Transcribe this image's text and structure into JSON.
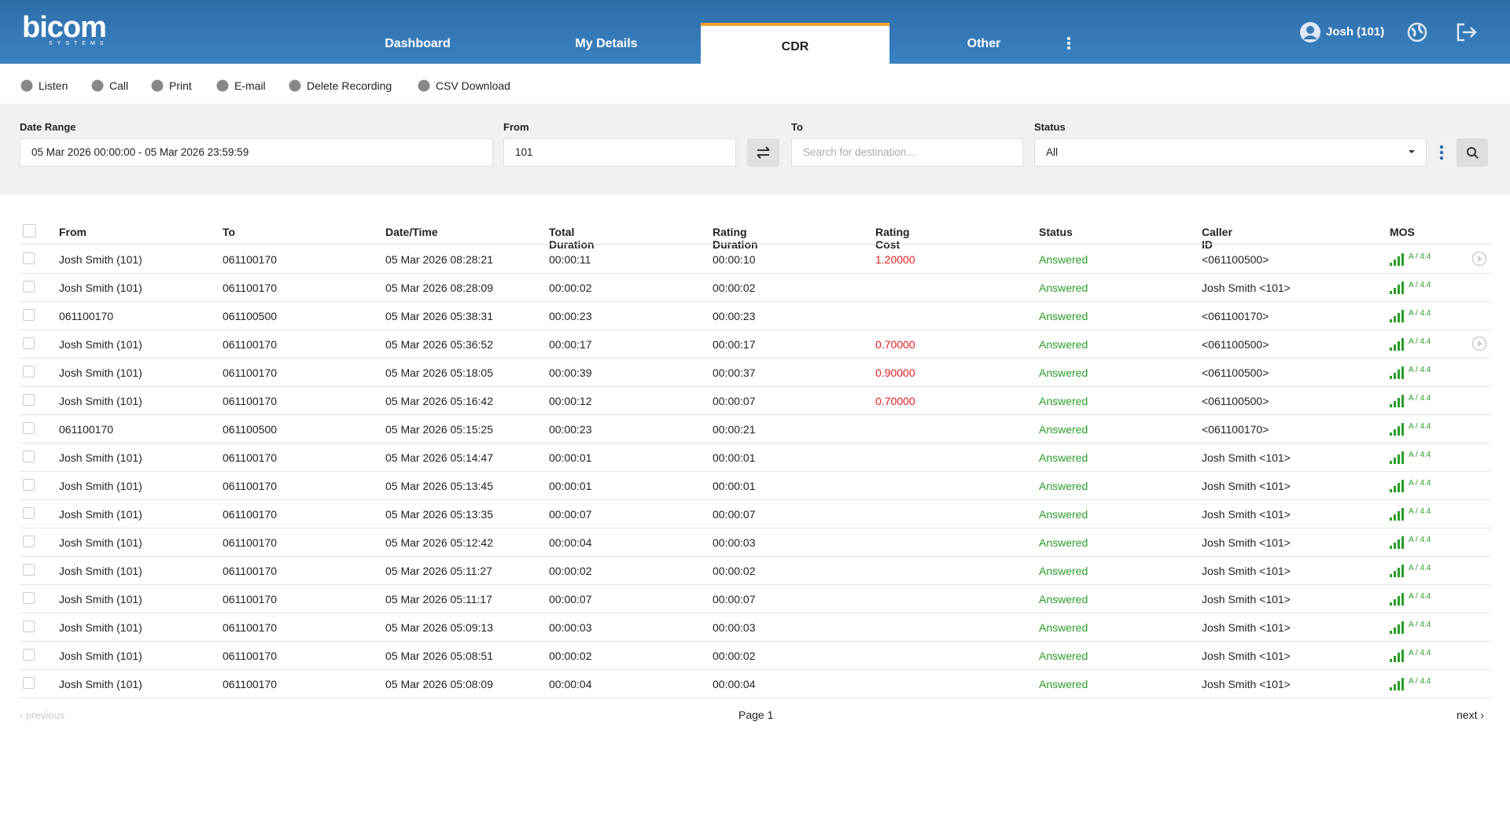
{
  "header": {
    "logo": "bicom",
    "logo_sub": "SYSTEMS",
    "nav": [
      "Dashboard",
      "My Details",
      "CDR",
      "Other"
    ],
    "active_nav": 2,
    "user": "Josh (101)"
  },
  "toolbar": [
    "Listen",
    "Call",
    "Print",
    "E-mail",
    "Delete Recording",
    "CSV Download"
  ],
  "filters": {
    "date_range": {
      "label": "Date Range",
      "value": "05 Mar 2026 00:00:00 - 05 Mar 2026 23:59:59"
    },
    "from": {
      "label": "From",
      "value": "101"
    },
    "to": {
      "label": "To",
      "placeholder": "Search for destination..."
    },
    "status": {
      "label": "Status",
      "value": "All"
    }
  },
  "table": {
    "columns": [
      "From",
      "To",
      "Date/Time",
      "Total Duration",
      "Rating Duration",
      "Rating Cost",
      "Status",
      "Caller ID",
      "MOS"
    ],
    "rows": [
      {
        "cells": [
          "Josh Smith (101)",
          "061100170",
          "05 Mar 2026 08:28:21",
          "00:00:11",
          "00:00:10",
          "1.20000",
          "Answered",
          "<061100500>",
          "A / 4.4"
        ],
        "recording": true
      },
      {
        "cells": [
          "Josh Smith (101)",
          "061100170",
          "05 Mar 2026 08:28:09",
          "00:00:02",
          "00:00:02",
          null,
          "Answered",
          "Josh Smith <101>",
          "A / 4.4"
        ],
        "recording": false
      },
      {
        "cells": [
          "061100170",
          "061100500",
          "05 Mar 2026 05:38:31",
          "00:00:23",
          "00:00:23",
          null,
          "Answered",
          "<061100170>",
          "A / 4.4"
        ],
        "recording": false
      },
      {
        "cells": [
          "Josh Smith (101)",
          "061100170",
          "05 Mar 2026 05:36:52",
          "00:00:17",
          "00:00:17",
          "0.70000",
          "Answered",
          "<061100500>",
          "A / 4.4"
        ],
        "recording": true
      },
      {
        "cells": [
          "Josh Smith (101)",
          "061100170",
          "05 Mar 2026 05:18:05",
          "00:00:39",
          "00:00:37",
          "0.90000",
          "Answered",
          "<061100500>",
          "A / 4.4"
        ],
        "recording": false
      },
      {
        "cells": [
          "Josh Smith (101)",
          "061100170",
          "05 Mar 2026 05:16:42",
          "00:00:12",
          "00:00:07",
          "0.70000",
          "Answered",
          "<061100500>",
          "A / 4.4"
        ],
        "recording": false
      },
      {
        "cells": [
          "061100170",
          "061100500",
          "05 Mar 2026 05:15:25",
          "00:00:23",
          "00:00:21",
          null,
          "Answered",
          "<061100170>",
          "A / 4.4"
        ],
        "recording": false
      },
      {
        "cells": [
          "Josh Smith (101)",
          "061100170",
          "05 Mar 2026 05:14:47",
          "00:00:01",
          "00:00:01",
          null,
          "Answered",
          "Josh Smith <101>",
          "A / 4.4"
        ],
        "recording": false
      },
      {
        "cells": [
          "Josh Smith (101)",
          "061100170",
          "05 Mar 2026 05:13:45",
          "00:00:01",
          "00:00:01",
          null,
          "Answered",
          "Josh Smith <101>",
          "A / 4.4"
        ],
        "recording": false
      },
      {
        "cells": [
          "Josh Smith (101)",
          "061100170",
          "05 Mar 2026 05:13:35",
          "00:00:07",
          "00:00:07",
          null,
          "Answered",
          "Josh Smith <101>",
          "A / 4.4"
        ],
        "recording": false
      },
      {
        "cells": [
          "Josh Smith (101)",
          "061100170",
          "05 Mar 2026 05:12:42",
          "00:00:04",
          "00:00:03",
          null,
          "Answered",
          "Josh Smith <101>",
          "A / 4.4"
        ],
        "recording": false
      },
      {
        "cells": [
          "Josh Smith (101)",
          "061100170",
          "05 Mar 2026 05:11:27",
          "00:00:02",
          "00:00:02",
          null,
          "Answered",
          "Josh Smith <101>",
          "A / 4.4"
        ],
        "recording": false
      },
      {
        "cells": [
          "Josh Smith (101)",
          "061100170",
          "05 Mar 2026 05:11:17",
          "00:00:07",
          "00:00:07",
          null,
          "Answered",
          "Josh Smith <101>",
          "A / 4.4"
        ],
        "recording": false
      },
      {
        "cells": [
          "Josh Smith (101)",
          "061100170",
          "05 Mar 2026 05:09:13",
          "00:00:03",
          "00:00:03",
          null,
          "Answered",
          "Josh Smith <101>",
          "A / 4.4"
        ],
        "recording": false
      },
      {
        "cells": [
          "Josh Smith (101)",
          "061100170",
          "05 Mar 2026 05:08:51",
          "00:00:02",
          "00:00:02",
          null,
          "Answered",
          "Josh Smith <101>",
          "A / 4.4"
        ],
        "recording": false
      },
      {
        "cells": [
          "Josh Smith (101)",
          "061100170",
          "05 Mar 2026 05:08:09",
          "00:00:04",
          "00:00:04",
          null,
          "Answered",
          "Josh Smith <101>",
          "A / 4.4"
        ],
        "recording": false
      }
    ]
  },
  "pagination": {
    "previous": "previous",
    "page": "Page 1",
    "next": "next"
  }
}
